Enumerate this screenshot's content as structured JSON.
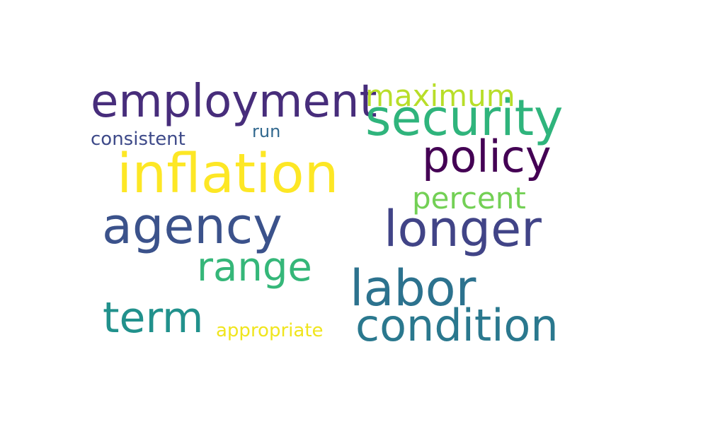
{
  "word_cloud": {
    "words": {
      "employment": {
        "text": "employment",
        "color": "#472d7b"
      },
      "maximum": {
        "text": "maximum",
        "color": "#b8de29"
      },
      "security": {
        "text": "security",
        "color": "#2fb47c"
      },
      "consistent": {
        "text": "consistent",
        "color": "#3e4a89"
      },
      "run": {
        "text": "run",
        "color": "#31688e"
      },
      "policy": {
        "text": "policy",
        "color": "#440154"
      },
      "inflation": {
        "text": "inflation",
        "color": "#fde725"
      },
      "percent": {
        "text": "percent",
        "color": "#73d055"
      },
      "agency": {
        "text": "agency",
        "color": "#3b528b"
      },
      "longer": {
        "text": "longer",
        "color": "#414487"
      },
      "range": {
        "text": "range",
        "color": "#35b779"
      },
      "labor": {
        "text": "labor",
        "color": "#2c728e"
      },
      "term": {
        "text": "term",
        "color": "#21918c"
      },
      "appropriate": {
        "text": "appropriate",
        "color": "#f0e51e"
      },
      "condition": {
        "text": "condition",
        "color": "#2a788e"
      }
    }
  }
}
